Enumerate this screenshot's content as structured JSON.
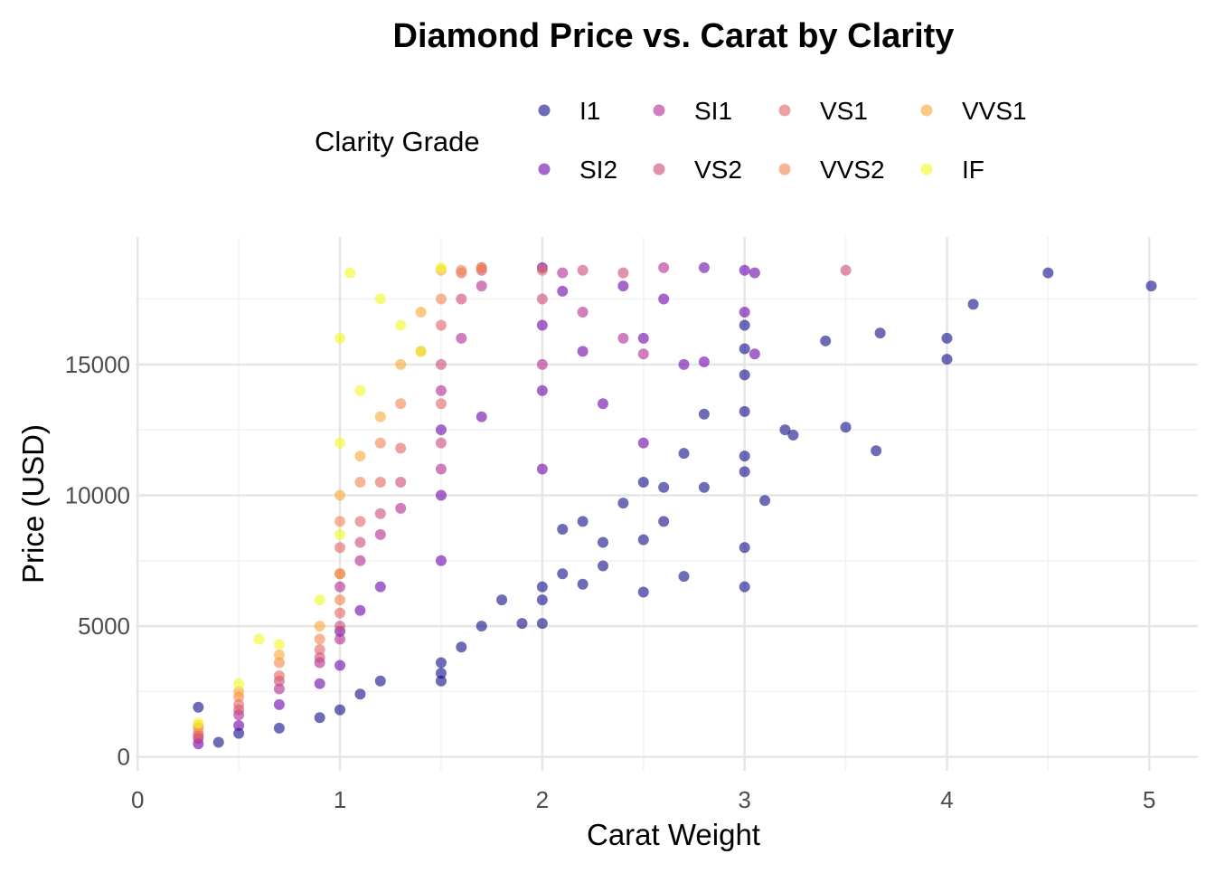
{
  "chart_data": {
    "type": "scatter",
    "title": "Diamond Price vs. Carat by Clarity",
    "xlabel": "Carat Weight",
    "ylabel": "Price (USD)",
    "xlim": [
      -0.01,
      5.24
    ],
    "ylim": [
      -530,
      19870
    ],
    "xticks": [
      0,
      1,
      2,
      3,
      4,
      5
    ],
    "yticks": [
      0,
      5000,
      10000,
      15000
    ],
    "grid": true,
    "point_opacity": 0.6,
    "legend": {
      "title": "Clarity Grade",
      "placement": "top",
      "entries": [
        "I1",
        "SI2",
        "SI1",
        "VS2",
        "VS1",
        "VVS2",
        "VVS1",
        "IF"
      ]
    },
    "colors": {
      "I1": "#0d0887",
      "SI2": "#6a00a8",
      "SI1": "#b12a90",
      "VS2": "#cc4778",
      "VS1": "#e16462",
      "VVS2": "#f2844b",
      "VVS1": "#fca636",
      "IF": "#f0f921"
    },
    "series": [
      {
        "name": "I1",
        "points": [
          [
            0.3,
            1900
          ],
          [
            0.4,
            560
          ],
          [
            0.5,
            900
          ],
          [
            0.7,
            1100
          ],
          [
            0.9,
            1500
          ],
          [
            1.0,
            1800
          ],
          [
            1.1,
            2400
          ],
          [
            1.2,
            2900
          ],
          [
            1.5,
            2900
          ],
          [
            1.5,
            3200
          ],
          [
            1.5,
            3600
          ],
          [
            1.6,
            4200
          ],
          [
            1.7,
            5000
          ],
          [
            1.8,
            6000
          ],
          [
            1.9,
            5100
          ],
          [
            2.0,
            5100
          ],
          [
            2.0,
            6000
          ],
          [
            2.0,
            6500
          ],
          [
            2.1,
            7000
          ],
          [
            2.2,
            6600
          ],
          [
            2.3,
            7300
          ],
          [
            2.1,
            8700
          ],
          [
            2.2,
            9000
          ],
          [
            2.3,
            8200
          ],
          [
            2.4,
            9700
          ],
          [
            2.5,
            6300
          ],
          [
            2.5,
            8300
          ],
          [
            2.5,
            10500
          ],
          [
            2.6,
            9000
          ],
          [
            2.6,
            10300
          ],
          [
            2.7,
            6900
          ],
          [
            2.7,
            11600
          ],
          [
            2.8,
            10300
          ],
          [
            2.8,
            13100
          ],
          [
            3.0,
            6500
          ],
          [
            3.0,
            8000
          ],
          [
            3.0,
            10900
          ],
          [
            3.0,
            11500
          ],
          [
            3.0,
            13200
          ],
          [
            3.0,
            14600
          ],
          [
            3.0,
            15600
          ],
          [
            3.0,
            16500
          ],
          [
            3.1,
            9800
          ],
          [
            3.2,
            12500
          ],
          [
            3.24,
            12300
          ],
          [
            3.4,
            15900
          ],
          [
            3.5,
            12600
          ],
          [
            3.65,
            11700
          ],
          [
            3.67,
            16200
          ],
          [
            4.0,
            15200
          ],
          [
            4.0,
            16000
          ],
          [
            4.13,
            17300
          ],
          [
            4.5,
            18500
          ],
          [
            5.01,
            18000
          ]
        ]
      },
      {
        "name": "SI2",
        "points": [
          [
            0.3,
            500
          ],
          [
            0.5,
            1200
          ],
          [
            0.7,
            2000
          ],
          [
            0.9,
            2800
          ],
          [
            1.0,
            3500
          ],
          [
            1.0,
            4800
          ],
          [
            1.1,
            5600
          ],
          [
            1.2,
            6500
          ],
          [
            1.5,
            7500
          ],
          [
            1.5,
            10000
          ],
          [
            1.5,
            12500
          ],
          [
            1.7,
            13000
          ],
          [
            2.0,
            11000
          ],
          [
            2.0,
            14000
          ],
          [
            2.0,
            16500
          ],
          [
            2.0,
            18700
          ],
          [
            2.1,
            17800
          ],
          [
            2.2,
            15500
          ],
          [
            2.3,
            13500
          ],
          [
            2.4,
            18000
          ],
          [
            2.5,
            12000
          ],
          [
            2.5,
            16000
          ],
          [
            2.6,
            17500
          ],
          [
            2.7,
            15000
          ],
          [
            2.8,
            15100
          ],
          [
            2.8,
            18700
          ],
          [
            3.0,
            17000
          ],
          [
            3.0,
            18600
          ],
          [
            3.05,
            15400
          ],
          [
            3.05,
            18500
          ]
        ]
      },
      {
        "name": "SI1",
        "points": [
          [
            0.3,
            700
          ],
          [
            0.5,
            1600
          ],
          [
            0.7,
            2600
          ],
          [
            0.9,
            3600
          ],
          [
            1.0,
            4500
          ],
          [
            1.0,
            6500
          ],
          [
            1.1,
            7500
          ],
          [
            1.2,
            8500
          ],
          [
            1.3,
            9500
          ],
          [
            1.5,
            11000
          ],
          [
            1.5,
            14000
          ],
          [
            1.6,
            16000
          ],
          [
            1.7,
            18000
          ],
          [
            2.0,
            15000
          ],
          [
            2.1,
            18500
          ],
          [
            2.2,
            17000
          ],
          [
            2.4,
            16000
          ],
          [
            2.5,
            15400
          ],
          [
            2.6,
            18700
          ]
        ]
      },
      {
        "name": "VS2",
        "points": [
          [
            0.3,
            800
          ],
          [
            0.5,
            1800
          ],
          [
            0.7,
            2900
          ],
          [
            0.9,
            3800
          ],
          [
            1.0,
            5000
          ],
          [
            1.0,
            7000
          ],
          [
            1.1,
            8200
          ],
          [
            1.2,
            9300
          ],
          [
            1.3,
            10500
          ],
          [
            1.5,
            12000
          ],
          [
            1.5,
            15000
          ],
          [
            1.6,
            17500
          ],
          [
            1.7,
            18600
          ],
          [
            2.0,
            17500
          ],
          [
            2.2,
            18600
          ],
          [
            2.4,
            18500
          ],
          [
            3.5,
            18600
          ]
        ]
      },
      {
        "name": "VS1",
        "points": [
          [
            0.3,
            900
          ],
          [
            0.5,
            2000
          ],
          [
            0.7,
            3100
          ],
          [
            0.9,
            4100
          ],
          [
            1.0,
            5500
          ],
          [
            1.0,
            8000
          ],
          [
            1.1,
            9000
          ],
          [
            1.2,
            10500
          ],
          [
            1.3,
            11800
          ],
          [
            1.5,
            13500
          ],
          [
            1.5,
            16500
          ],
          [
            1.6,
            18500
          ],
          [
            1.7,
            18700
          ],
          [
            2.0,
            18600
          ]
        ]
      },
      {
        "name": "VVS2",
        "points": [
          [
            0.3,
            1100
          ],
          [
            0.5,
            2300
          ],
          [
            0.7,
            3600
          ],
          [
            0.9,
            4500
          ],
          [
            1.0,
            6000
          ],
          [
            1.0,
            9000
          ],
          [
            1.1,
            10500
          ],
          [
            1.2,
            12000
          ],
          [
            1.3,
            13500
          ],
          [
            1.4,
            15500
          ],
          [
            1.5,
            17500
          ],
          [
            1.6,
            18600
          ],
          [
            1.7,
            18700
          ]
        ]
      },
      {
        "name": "VVS1",
        "points": [
          [
            0.3,
            1200
          ],
          [
            0.5,
            2500
          ],
          [
            0.7,
            3900
          ],
          [
            0.9,
            5000
          ],
          [
            1.0,
            7000
          ],
          [
            1.0,
            10000
          ],
          [
            1.1,
            11500
          ],
          [
            1.2,
            13000
          ],
          [
            1.3,
            15000
          ],
          [
            1.4,
            17000
          ],
          [
            1.5,
            18600
          ]
        ]
      },
      {
        "name": "IF",
        "points": [
          [
            0.3,
            1300
          ],
          [
            0.5,
            2800
          ],
          [
            0.6,
            4500
          ],
          [
            0.7,
            4300
          ],
          [
            0.9,
            6000
          ],
          [
            1.0,
            8500
          ],
          [
            1.0,
            12000
          ],
          [
            1.0,
            16000
          ],
          [
            1.05,
            18500
          ],
          [
            1.1,
            14000
          ],
          [
            1.2,
            17500
          ],
          [
            1.3,
            16500
          ],
          [
            1.4,
            15500
          ],
          [
            1.5,
            18700
          ]
        ]
      }
    ]
  }
}
